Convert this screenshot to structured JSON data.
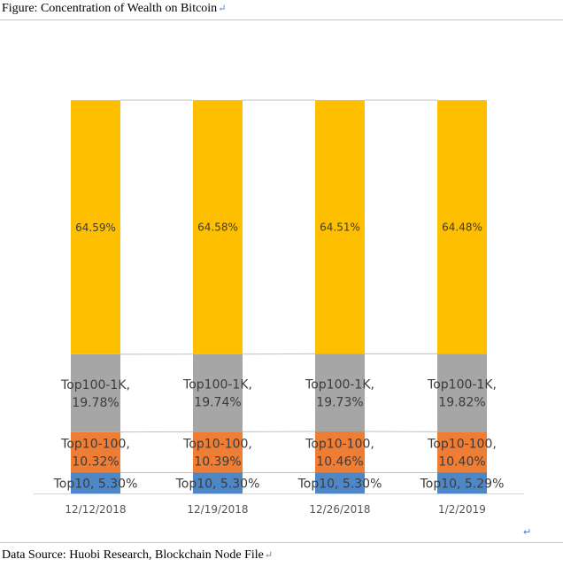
{
  "document": {
    "caption": "Figure:  Concentration of Wealth on Bitcoin",
    "source": "Data Source: Huobi Research, Blockchain Node File",
    "return_mark": "↵"
  },
  "colors": {
    "top10": "#4e87c8",
    "top10_100": "#ee7d35",
    "top100_1k": "#a6a6a6",
    "top1k_rest": "#fdbf00",
    "connector": "#c0c0c0",
    "axis": "#d4d4d4"
  },
  "chart_data": {
    "type": "bar",
    "stacked": true,
    "normalized": true,
    "title": "",
    "xlabel": "",
    "ylabel": "",
    "categories": [
      "12/12/2018",
      "12/19/2018",
      "12/26/2018",
      "1/2/2019"
    ],
    "series": [
      {
        "key": "top10",
        "values": [
          5.3,
          5.3,
          5.3,
          5.29
        ],
        "labels": [
          "Top10, 5.30%",
          "Top10, 5.30%",
          "Top10, 5.30%",
          "Top10, 5.29%"
        ]
      },
      {
        "key": "top10_100",
        "values": [
          10.32,
          10.39,
          10.46,
          10.4
        ],
        "labels": [
          [
            "Top10-100,",
            "10.32%"
          ],
          [
            "Top10-100,",
            "10.39%"
          ],
          [
            "Top10-100,",
            "10.46%"
          ],
          [
            "Top10-100,",
            "10.40%"
          ]
        ]
      },
      {
        "key": "top100_1k",
        "values": [
          19.78,
          19.74,
          19.73,
          19.82
        ],
        "labels": [
          [
            "Top100-1K,",
            "19.78%"
          ],
          [
            "Top100-1K,",
            "19.74%"
          ],
          [
            "Top100-1K,",
            "19.73%"
          ],
          [
            "Top100-1K,",
            "19.82%"
          ]
        ]
      },
      {
        "key": "top1k_rest",
        "values": [
          64.59,
          64.58,
          64.51,
          64.48
        ],
        "labels": [
          "64.59%",
          "64.58%",
          "64.51%",
          "64.48%"
        ]
      }
    ],
    "ylim": [
      0,
      100
    ],
    "grid": false,
    "legend": "none",
    "series_lines": true
  }
}
